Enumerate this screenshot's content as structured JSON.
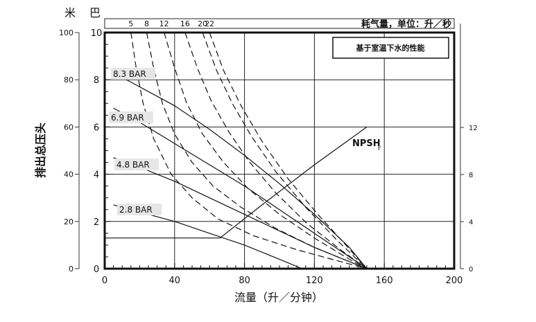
{
  "chart_data": {
    "type": "line",
    "title": "基于室温下水的性能",
    "xlabel": "流量（升／分钟）",
    "ylabel": "排出总压头",
    "unit_left_outer": "米",
    "unit_left_inner": "巴",
    "top_axis_label": "耗气量，单位：升／秒",
    "xlim": [
      0,
      200
    ],
    "ylim_m": [
      0,
      100
    ],
    "ylim_bar": [
      0,
      10
    ],
    "right_ylim": [
      0,
      12
    ],
    "x_ticks": [
      0,
      40,
      80,
      120,
      160,
      200
    ],
    "y_ticks_m": [
      0,
      20,
      40,
      60,
      80,
      100
    ],
    "y_ticks_bar": [
      0,
      2,
      4,
      6,
      8,
      10
    ],
    "right_ticks": [
      0,
      4,
      8,
      12
    ],
    "grid": true,
    "pressure_labels": [
      "8.3 BAR",
      "6.9 BAR",
      "4.8 BAR",
      "2.8 BAR"
    ],
    "npsh_label": "NPSH",
    "npsh_sub": "r",
    "series": [
      {
        "name": "8.3 BAR",
        "style": "solid",
        "x": [
          5,
          20,
          40,
          60,
          80,
          100,
          120,
          140,
          150
        ],
        "y": [
          8.3,
          7.7,
          6.9,
          5.9,
          4.8,
          3.6,
          2.3,
          0.9,
          0.0
        ]
      },
      {
        "name": "6.9 BAR",
        "style": "solid",
        "x": [
          5,
          20,
          40,
          60,
          80,
          100,
          120,
          140,
          150
        ],
        "y": [
          6.8,
          6.2,
          5.3,
          4.4,
          3.5,
          2.5,
          1.5,
          0.5,
          0.0
        ]
      },
      {
        "name": "4.8 BAR",
        "style": "solid",
        "x": [
          5,
          20,
          40,
          60,
          80,
          100,
          120,
          140,
          150
        ],
        "y": [
          4.7,
          4.3,
          3.7,
          3.0,
          2.3,
          1.6,
          0.9,
          0.3,
          0.0
        ]
      },
      {
        "name": "2.8 BAR",
        "style": "solid",
        "x": [
          5,
          20,
          40,
          60,
          80,
          100,
          113
        ],
        "y": [
          2.7,
          2.4,
          2.0,
          1.5,
          1.0,
          0.4,
          0.0
        ]
      },
      {
        "name": "5",
        "style": "dash",
        "x": [
          15,
          18,
          22,
          28,
          38,
          50,
          65,
          85,
          110,
          135,
          150
        ],
        "y": [
          10.0,
          8.5,
          7.0,
          5.5,
          4.0,
          3.0,
          2.1,
          1.4,
          0.8,
          0.3,
          0.0
        ]
      },
      {
        "name": "8",
        "style": "dash",
        "x": [
          24,
          28,
          33,
          40,
          50,
          62,
          78,
          98,
          120,
          140,
          150
        ],
        "y": [
          10.0,
          8.5,
          7.0,
          5.7,
          4.5,
          3.5,
          2.6,
          1.7,
          0.9,
          0.3,
          0.0
        ]
      },
      {
        "name": "12",
        "style": "dash",
        "x": [
          34,
          40,
          47,
          56,
          68,
          82,
          100,
          120,
          140,
          150
        ],
        "y": [
          10.0,
          8.5,
          7.0,
          5.7,
          4.5,
          3.4,
          2.3,
          1.3,
          0.4,
          0.0
        ]
      },
      {
        "name": "16",
        "style": "dash",
        "x": [
          46,
          53,
          61,
          71,
          83,
          98,
          116,
          135,
          150
        ],
        "y": [
          10.0,
          8.5,
          7.1,
          5.8,
          4.5,
          3.2,
          1.9,
          0.8,
          0.0
        ]
      },
      {
        "name": "20",
        "style": "dash",
        "x": [
          56,
          64,
          73,
          84,
          98,
          115,
          133,
          150
        ],
        "y": [
          10.0,
          8.4,
          7.0,
          5.6,
          4.1,
          2.6,
          1.2,
          0.0
        ]
      },
      {
        "name": "22",
        "style": "dash",
        "x": [
          60,
          68,
          78,
          90,
          105,
          122,
          138,
          150
        ],
        "y": [
          10.0,
          8.4,
          6.9,
          5.4,
          3.8,
          2.3,
          1.0,
          0.0
        ]
      },
      {
        "name": "NPSHr",
        "style": "solid",
        "x": [
          0,
          66,
          90,
          120,
          150
        ],
        "y": [
          1.3,
          1.3,
          2.7,
          4.4,
          6.0
        ]
      }
    ]
  }
}
